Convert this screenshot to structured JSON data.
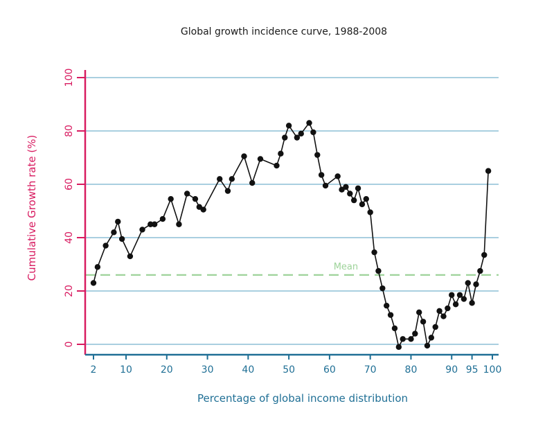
{
  "chart_data": {
    "type": "line",
    "title": "Global growth incidence curve, 1988-2008",
    "xlabel": "Percentage of global income distribution",
    "ylabel": "Cumulative Growth rate (%)",
    "xlim": [
      0,
      101
    ],
    "ylim": [
      -4,
      102
    ],
    "x_ticks": [
      2,
      10,
      20,
      30,
      40,
      50,
      60,
      70,
      80,
      90,
      95,
      100
    ],
    "x_tick_labels": [
      "2",
      "10",
      "20",
      "30",
      "40",
      "50",
      "60",
      "70",
      "80",
      "90",
      "95",
      "100"
    ],
    "y_ticks": [
      0,
      20,
      40,
      60,
      80,
      100
    ],
    "y_tick_labels": [
      "0",
      "20",
      "40",
      "60",
      "80",
      "100"
    ],
    "grid": "horizontal",
    "mean": {
      "label": "Mean",
      "value": 26
    },
    "colors": {
      "title": "#1a1a1a",
      "y_axis": "#d81b60",
      "x_axis": "#1f6f95",
      "grid": "#a9cfe0",
      "mean": "#9ed39a",
      "series": "#111111"
    },
    "series": [
      {
        "points": [
          [
            2,
            23
          ],
          [
            3,
            29
          ],
          [
            5,
            37
          ],
          [
            7,
            42
          ],
          [
            8,
            46
          ],
          [
            9,
            39.5
          ],
          [
            11,
            33
          ],
          [
            14,
            43
          ],
          [
            16,
            45
          ],
          [
            17,
            45
          ],
          [
            19,
            47
          ],
          [
            21,
            54.5
          ],
          [
            23,
            45
          ],
          [
            25,
            56.5
          ],
          [
            27,
            54.5
          ],
          [
            28,
            51.5
          ],
          [
            29,
            50.5
          ],
          [
            33,
            62
          ],
          [
            35,
            57.5
          ],
          [
            36,
            62
          ],
          [
            39,
            70.5
          ],
          [
            41,
            60.5
          ],
          [
            43,
            69.5
          ],
          [
            47,
            67
          ],
          [
            48,
            71.5
          ],
          [
            49,
            77.5
          ],
          [
            50,
            82
          ],
          [
            52,
            77.5
          ],
          [
            53,
            79
          ],
          [
            55,
            83
          ],
          [
            56,
            79.5
          ],
          [
            57,
            71
          ],
          [
            58,
            63.5
          ],
          [
            59,
            59.5
          ],
          [
            62,
            63
          ],
          [
            63,
            58
          ],
          [
            64,
            59
          ],
          [
            65,
            56.5
          ],
          [
            66,
            54
          ],
          [
            67,
            58.5
          ],
          [
            68,
            52.5
          ],
          [
            69,
            54.5
          ],
          [
            70,
            49.5
          ],
          [
            71,
            34.5
          ],
          [
            72,
            27.5
          ],
          [
            73,
            21
          ],
          [
            74,
            14.5
          ],
          [
            75,
            11
          ],
          [
            76,
            6
          ],
          [
            77,
            -1
          ],
          [
            78,
            2
          ],
          [
            80,
            2
          ],
          [
            81,
            4
          ],
          [
            82,
            12
          ],
          [
            83,
            8.5
          ],
          [
            84,
            -0.5
          ],
          [
            85,
            2.5
          ],
          [
            86,
            6.5
          ],
          [
            87,
            12.5
          ],
          [
            88,
            10.5
          ],
          [
            89,
            13.5
          ],
          [
            90,
            18.5
          ],
          [
            91,
            15
          ],
          [
            92,
            18.5
          ],
          [
            93,
            17
          ],
          [
            94,
            23
          ],
          [
            95,
            15.5
          ],
          [
            96,
            22.5
          ],
          [
            97,
            27.5
          ],
          [
            98,
            33.5
          ],
          [
            99,
            65
          ]
        ]
      }
    ]
  }
}
